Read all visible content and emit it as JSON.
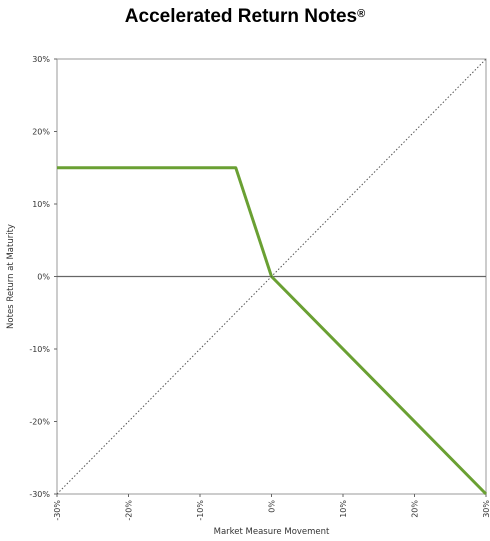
{
  "chart_data": {
    "type": "line",
    "title": "Accelerated Return Notes",
    "title_mark": "®",
    "xlabel": "Market Measure Movement",
    "ylabel": "Notes Return at Maturity",
    "xlim": [
      -30,
      30
    ],
    "ylim": [
      -30,
      30
    ],
    "x_ticks": [
      -30,
      -20,
      -10,
      0,
      10,
      20,
      30
    ],
    "y_ticks": [
      -30,
      -20,
      -10,
      0,
      10,
      20,
      30
    ],
    "x_tick_labels": [
      "-30%",
      "-20%",
      "-10%",
      "0%",
      "10%",
      "20%",
      "30%"
    ],
    "y_tick_labels": [
      "-30%",
      "-20%",
      "-10%",
      "0%",
      "10%",
      "20%",
      "30%"
    ],
    "grid": false,
    "series": [
      {
        "color": "#6aa033",
        "style": "solid",
        "x": [
          -30,
          -5,
          0,
          30
        ],
        "y": [
          15,
          15,
          0,
          -30
        ]
      },
      {
        "color": "#555555",
        "style": "dotted",
        "x": [
          -30,
          30
        ],
        "y": [
          -30,
          30
        ]
      }
    ],
    "zero_line_color": "#666666"
  }
}
